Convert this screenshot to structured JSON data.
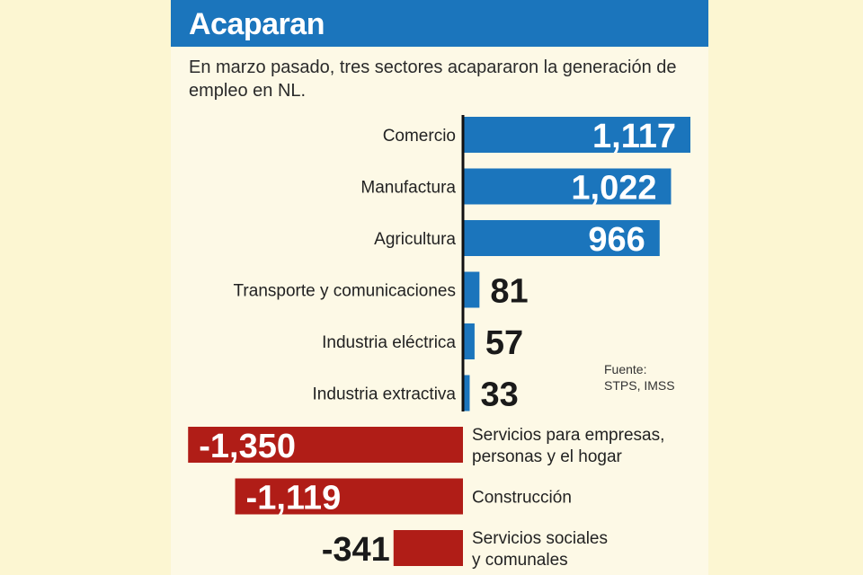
{
  "title": "Acaparan",
  "subtitle": "En marzo pasado, tres sectores acapararon la generación de empleo en NL.",
  "source": "Fuente:\nSTPS, IMSS",
  "colors": {
    "positive": "#1b75bc",
    "negative": "#b01d17",
    "header": "#1b75bc",
    "panel": "#fdf9e6",
    "page": "#fcf6d2"
  },
  "chart_data": {
    "type": "bar",
    "orientation": "horizontal",
    "categories": [
      "Comercio",
      "Manufactura",
      "Agricultura",
      "Transporte y comunicaciones",
      "Industria eléctrica",
      "Industria extractiva",
      "Servicios para empresas, personas y el hogar",
      "Construcción",
      "Servicios sociales y comunales"
    ],
    "category_lines": [
      [
        "Comercio"
      ],
      [
        "Manufactura"
      ],
      [
        "Agricultura"
      ],
      [
        "Transporte y comunicaciones"
      ],
      [
        "Industria eléctrica"
      ],
      [
        "Industria extractiva"
      ],
      [
        "Servicios para empresas,",
        "personas y el hogar"
      ],
      [
        "Construcción"
      ],
      [
        "Servicios sociales",
        "y comunales"
      ]
    ],
    "values": [
      1117,
      1022,
      966,
      81,
      57,
      33,
      -1350,
      -1119,
      -341
    ],
    "value_labels": [
      "1,117",
      "1,022",
      "966",
      "81",
      "57",
      "33",
      "-1,350",
      "-1,119",
      "-341"
    ]
  }
}
